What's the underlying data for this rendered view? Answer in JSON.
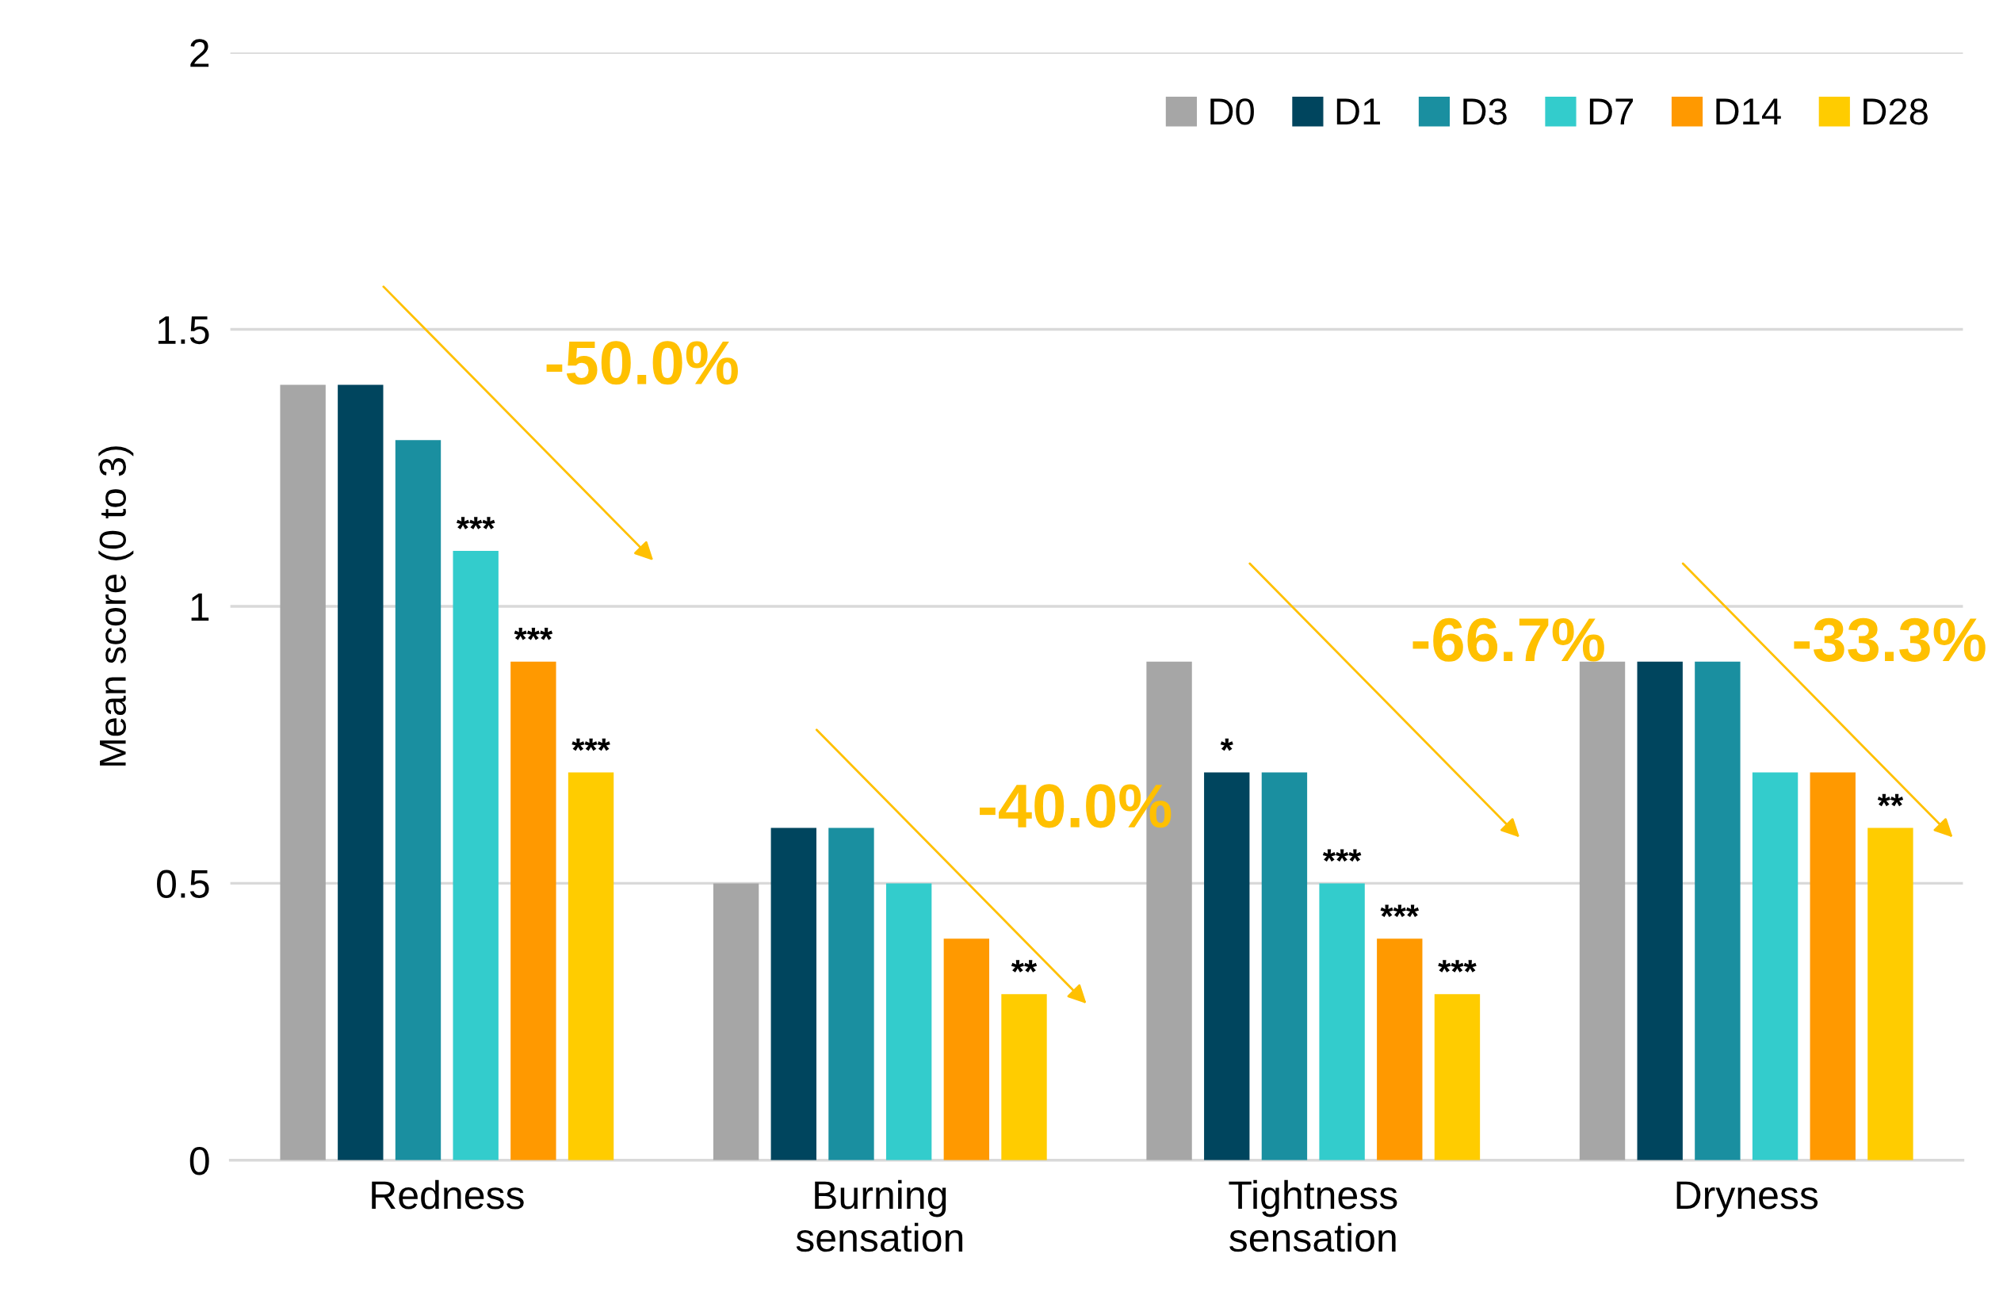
{
  "chart_data": {
    "type": "bar",
    "ylabel": "Mean score (0 to 3)",
    "categories": [
      "Redness",
      "Burning\nsensation",
      "Tightness\nsensation",
      "Dryness"
    ],
    "series": [
      {
        "name": "D0",
        "color": "#a6a6a6",
        "values": [
          1.4,
          0.5,
          0.9,
          0.9
        ]
      },
      {
        "name": "D1",
        "color": "#00455e",
        "values": [
          1.4,
          0.6,
          0.7,
          0.9
        ],
        "value_labels": [
          null,
          null,
          "*",
          null
        ]
      },
      {
        "name": "D3",
        "color": "#1a8fa0",
        "values": [
          1.3,
          0.6,
          0.7,
          0.9
        ]
      },
      {
        "name": "D7",
        "color": "#33cccc",
        "values": [
          1.1,
          0.5,
          0.5,
          0.7
        ],
        "value_labels": [
          "***",
          null,
          "***",
          null
        ]
      },
      {
        "name": "D14",
        "color": "#ff9900",
        "values": [
          0.9,
          0.4,
          0.4,
          0.7
        ],
        "value_labels": [
          "***",
          null,
          "***",
          null
        ]
      },
      {
        "name": "D28",
        "color": "#ffcc00",
        "values": [
          0.7,
          0.3,
          0.3,
          0.6
        ],
        "value_labels": [
          "***",
          "**",
          "***",
          "**"
        ]
      }
    ],
    "annotations": [
      "-50.0%",
      "-40.0%",
      "-66.7%",
      "-33.3%"
    ],
    "ylim": [
      0,
      2
    ],
    "yticks": [
      0,
      0.5,
      1,
      1.5,
      2
    ],
    "grid": "y",
    "legend": "top right"
  }
}
